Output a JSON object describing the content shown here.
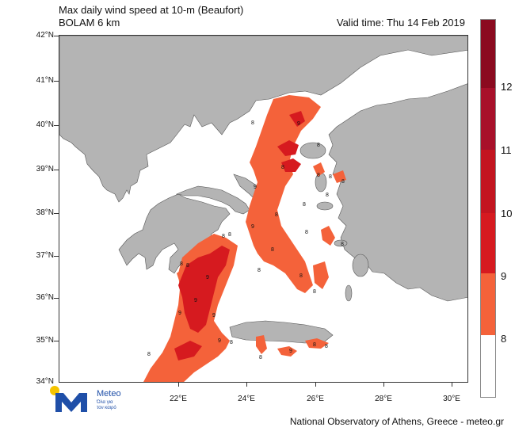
{
  "header": {
    "title": "Max daily wind speed at 10-m (Beaufort)",
    "model": "BOLAM 6 km",
    "valid_time": "Valid time: Thu 14 Feb 2019"
  },
  "footer": "National Observatory of Athens, Greece - meteo.gr",
  "logo": {
    "name": "Meteo",
    "tagline_1": "Όλα για",
    "tagline_2": "τον καιρό"
  },
  "lat_labels": [
    "42°N",
    "41°N",
    "40°N",
    "39°N",
    "38°N",
    "37°N",
    "36°N",
    "35°N",
    "34°N"
  ],
  "lon_labels": [
    "22°E",
    "24°E",
    "26°E",
    "28°E",
    "30°E"
  ],
  "colorbar": {
    "labels": [
      "12",
      "11",
      "10",
      "9",
      "8"
    ],
    "colors": [
      "#8b0a1f",
      "#b5112a",
      "#d4171c",
      "#e8321e",
      "#f4623a",
      "#ffffff"
    ]
  },
  "contour_labels": [
    "8",
    "9",
    "8",
    "8",
    "9",
    "8",
    "8",
    "8",
    "8",
    "9",
    "8",
    "8",
    "8",
    "8",
    "8",
    "8",
    "9",
    "9",
    "9",
    "8",
    "9",
    "8",
    "8",
    "9",
    "8",
    "8",
    "8",
    "9",
    "8",
    "8",
    "8",
    "8",
    "8"
  ],
  "colors": {
    "land": "#b4b4b4",
    "sea": "#ffffff",
    "level8": "#f4623a",
    "level9": "#e8321e"
  }
}
